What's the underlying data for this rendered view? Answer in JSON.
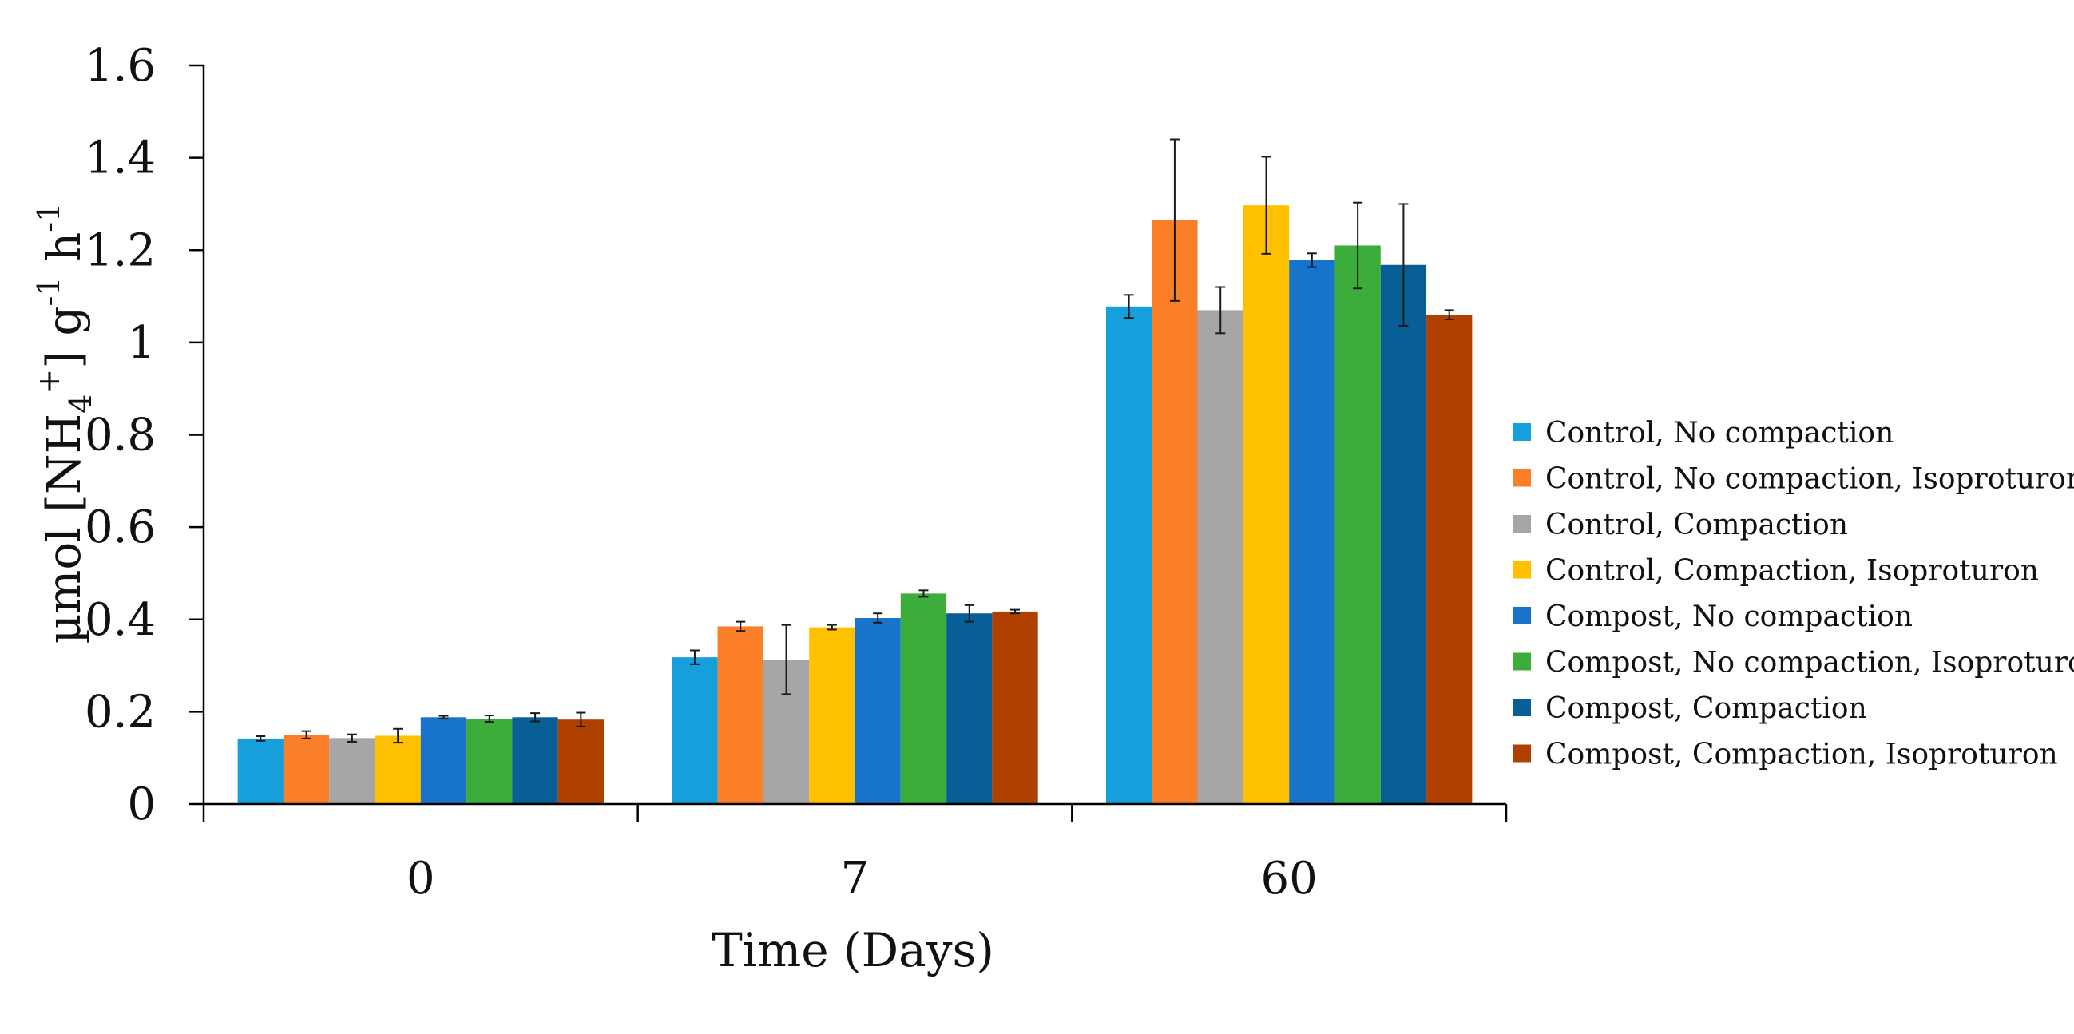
{
  "chart_data": {
    "type": "bar",
    "title": "",
    "xlabel": "Time (Days)",
    "ylabel": {
      "prefix": "µmol [NH",
      "sub1": "4",
      "sup1": "+",
      "mid": "] g",
      "sup2": "-1",
      "mid2": " h",
      "sup3": "-1"
    },
    "ylim": [
      0,
      1.6
    ],
    "yticks": [
      "0",
      "0.2",
      "0.4",
      "0.6",
      "0.8",
      "1",
      "1.2",
      "1.4",
      "1.6"
    ],
    "categories": [
      "0",
      "7",
      "60"
    ],
    "legend_position": "right",
    "series": [
      {
        "name": "Control, No compaction",
        "color": "#169fdb",
        "values": [
          0.142,
          0.318,
          1.078
        ],
        "errors": [
          0.005,
          0.015,
          0.025
        ]
      },
      {
        "name": "Control, No compaction, Isoproturon",
        "color": "#fb7e29",
        "values": [
          0.15,
          0.385,
          1.265
        ],
        "errors": [
          0.008,
          0.01,
          0.175
        ]
      },
      {
        "name": "Control, Compaction",
        "color": "#a6a6a6",
        "values": [
          0.143,
          0.313,
          1.07
        ],
        "errors": [
          0.008,
          0.075,
          0.05
        ]
      },
      {
        "name": "Control, Compaction, Isoproturon",
        "color": "#ffc000",
        "values": [
          0.148,
          0.383,
          1.297
        ],
        "errors": [
          0.015,
          0.005,
          0.105
        ]
      },
      {
        "name": "Compost, No compaction",
        "color": "#1874cb",
        "values": [
          0.188,
          0.403,
          1.178
        ],
        "errors": [
          0.003,
          0.01,
          0.015
        ]
      },
      {
        "name": "Compost, No compaction, Isoproturon",
        "color": "#3cad3b",
        "values": [
          0.185,
          0.456,
          1.21
        ],
        "errors": [
          0.007,
          0.007,
          0.093
        ]
      },
      {
        "name": "Compost, Compaction",
        "color": "#075f96",
        "values": [
          0.188,
          0.413,
          1.168
        ],
        "errors": [
          0.009,
          0.018,
          0.132
        ]
      },
      {
        "name": "Compost, Compaction, Isoproturon",
        "color": "#b04000",
        "values": [
          0.183,
          0.417,
          1.06
        ],
        "errors": [
          0.015,
          0.004,
          0.01
        ]
      }
    ]
  }
}
